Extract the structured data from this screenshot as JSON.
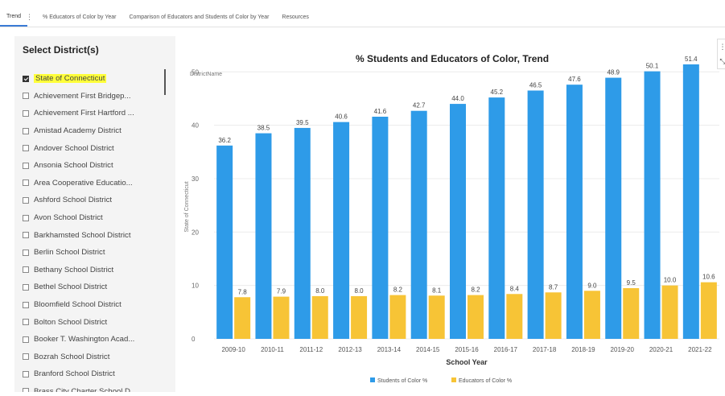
{
  "tabs": [
    {
      "label": "Trend",
      "active": true
    },
    {
      "label": "% Educators of Color by Year",
      "active": false
    },
    {
      "label": "Comparison of Educators and Students of Color by Year",
      "active": false
    },
    {
      "label": "Resources",
      "active": false
    }
  ],
  "tab_separator": "⋮",
  "left_panel": {
    "title": "Select District(s)",
    "items": [
      {
        "label": "State of Connecticut",
        "checked": true,
        "highlighted": true
      },
      {
        "label": "Achievement First Bridgep...",
        "checked": false
      },
      {
        "label": "Achievement First Hartford ...",
        "checked": false
      },
      {
        "label": "Amistad Academy District",
        "checked": false
      },
      {
        "label": "Andover School District",
        "checked": false
      },
      {
        "label": "Ansonia School District",
        "checked": false
      },
      {
        "label": "Area Cooperative Educatio...",
        "checked": false
      },
      {
        "label": "Ashford School District",
        "checked": false
      },
      {
        "label": "Avon School District",
        "checked": false
      },
      {
        "label": "Barkhamsted School District",
        "checked": false
      },
      {
        "label": "Berlin School District",
        "checked": false
      },
      {
        "label": "Bethany School District",
        "checked": false
      },
      {
        "label": "Bethel School District",
        "checked": false
      },
      {
        "label": "Bloomfield School District",
        "checked": false
      },
      {
        "label": "Bolton School District",
        "checked": false
      },
      {
        "label": "Booker T. Washington Acad...",
        "checked": false
      },
      {
        "label": "Bozrah School District",
        "checked": false
      },
      {
        "label": "Branford School District",
        "checked": false
      },
      {
        "label": "Brass City Charter School D...",
        "checked": false
      }
    ]
  },
  "chart": {
    "district_name_label": "DistrictName",
    "menu_icon": "more-vertical-icon",
    "colors": {
      "students": "#2e9be8",
      "educators": "#f7c436"
    }
  },
  "chart_data": {
    "type": "bar",
    "title": "% Students and Educators of Color, Trend",
    "xlabel": "School Year",
    "ylabel": "State of Connecticut",
    "ylim": [
      0,
      52
    ],
    "yticks": [
      0,
      10,
      20,
      30,
      40,
      50
    ],
    "categories": [
      "2009-10",
      "2010-11",
      "2011-12",
      "2012-13",
      "2013-14",
      "2014-15",
      "2015-16",
      "2016-17",
      "2017-18",
      "2018-19",
      "2019-20",
      "2020-21",
      "2021-22"
    ],
    "series": [
      {
        "name": "Students of Color %",
        "values": [
          36.2,
          38.5,
          39.5,
          40.6,
          41.6,
          42.7,
          44.0,
          45.2,
          46.5,
          47.6,
          48.9,
          50.1,
          51.4
        ]
      },
      {
        "name": "Educators of Color %",
        "values": [
          7.8,
          7.9,
          8.0,
          8.0,
          8.2,
          8.1,
          8.2,
          8.4,
          8.7,
          9.0,
          9.5,
          10.0,
          10.6
        ]
      }
    ],
    "grid": true,
    "legend": "bottom-center"
  }
}
